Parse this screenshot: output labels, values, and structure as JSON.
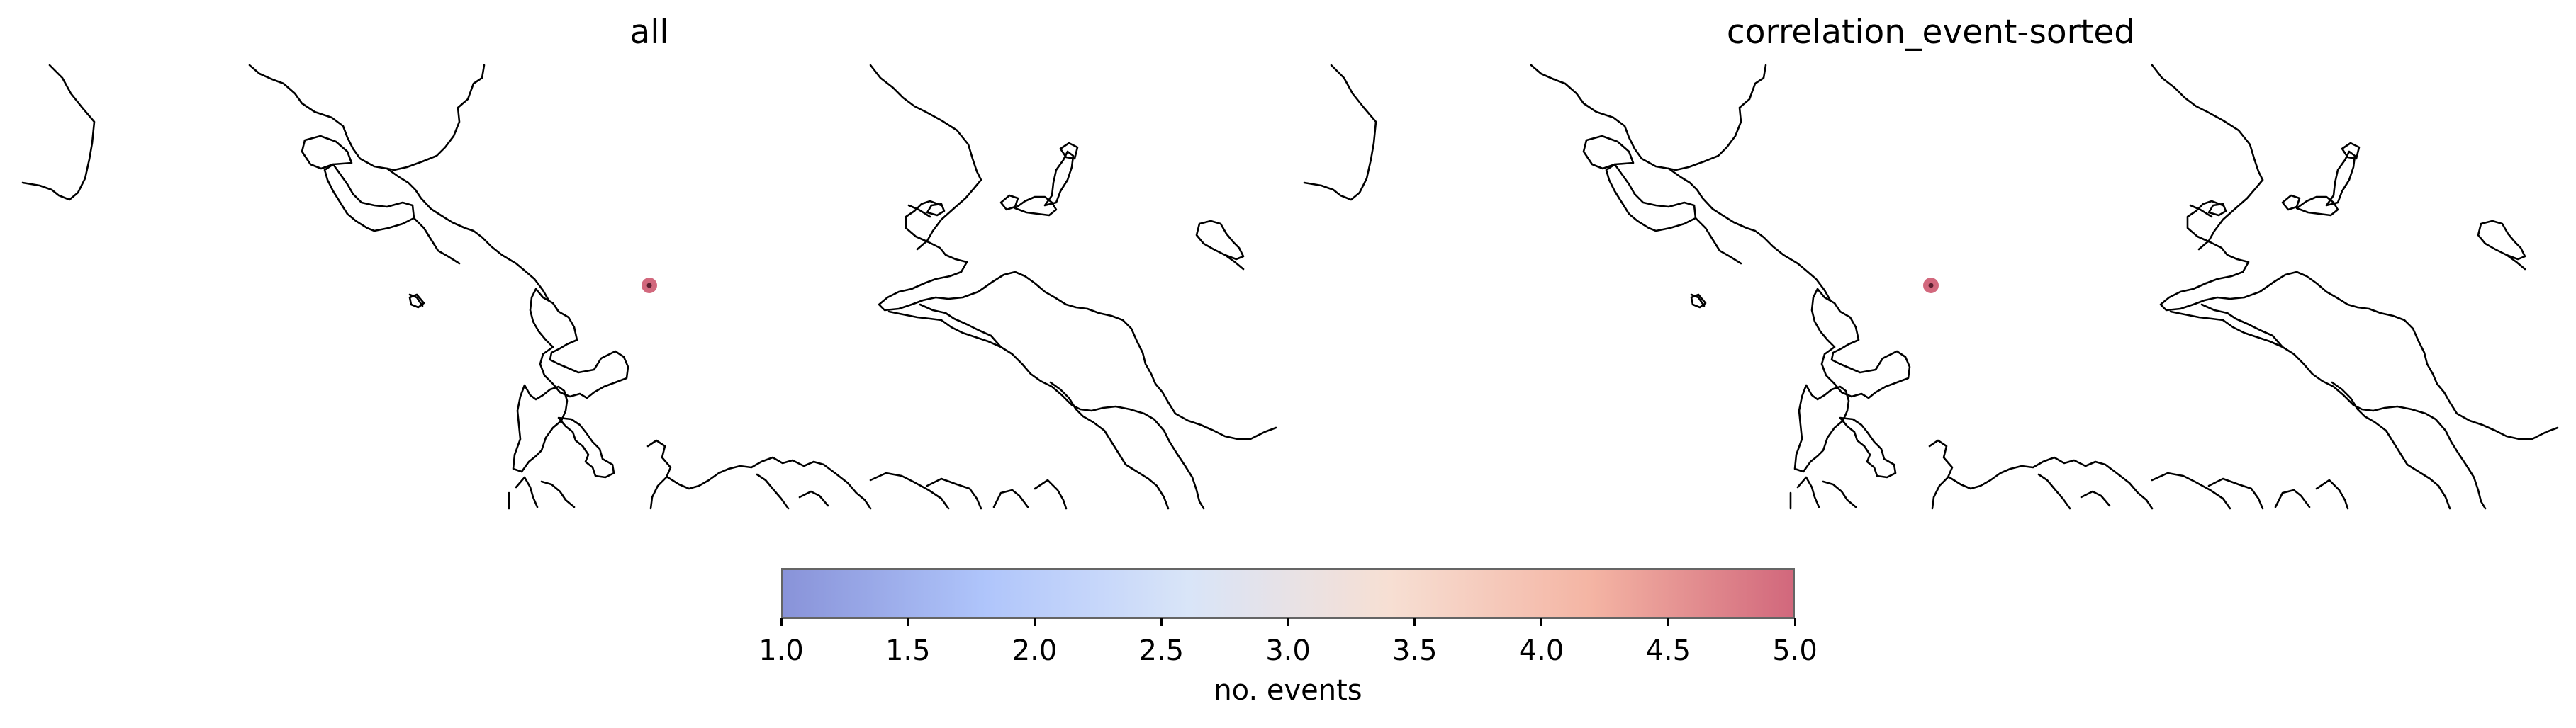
{
  "panels": [
    {
      "title": "all"
    },
    {
      "title": "correlation_event-sorted"
    }
  ],
  "events": [
    {
      "panel": "all",
      "count": 5
    },
    {
      "panel": "correlation_event-sorted",
      "count": 5
    }
  ],
  "colorbar": {
    "label": "no. events",
    "min": 1.0,
    "max": 5.0,
    "colormap": "coolwarm",
    "alpha": 0.6,
    "ticks": [
      "1.0",
      "1.5",
      "2.0",
      "2.5",
      "3.0",
      "3.5",
      "4.0",
      "4.5",
      "5.0"
    ],
    "colors": [
      "#3b4cc0",
      "#7b9ff9",
      "#c0d4f5",
      "#f2cbb7",
      "#ee8468",
      "#b40426"
    ]
  }
}
